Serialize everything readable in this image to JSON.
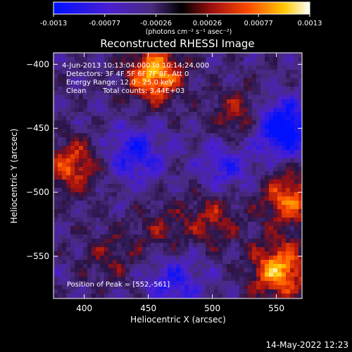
{
  "colorbar": {
    "ticks": [
      "-0.0013",
      "-0.00077",
      "-0.00026",
      "0.00026",
      "0.00077",
      "0.0013"
    ],
    "units_label": "(photons cm⁻² s⁻¹ asec⁻²)",
    "min": -0.0013,
    "max": 0.0013
  },
  "title": "Reconstructed RHESSI Image",
  "info": {
    "line1": "4-Jun-2013 10:13:04.000 to 10:14:24.000",
    "line2": "Detectors: 3F 4F 5F 6F 7F 8F, Att 0",
    "line3": "Energy Range: 12.0 - 25.0 keV",
    "line4_a": "Clean",
    "line4_b": "Total counts: 3.44E+03"
  },
  "peak_label": "Position of Peak = [552,-561]",
  "footer_date": "14-May-2022 12:23",
  "chart_data": {
    "type": "heatmap",
    "title": "Reconstructed RHESSI Image",
    "xlabel": "Heliocentric X (arcsec)",
    "ylabel": "Heliocentric Y (arcsec)",
    "x_ticks": [
      "400",
      "450",
      "500",
      "550"
    ],
    "y_ticks": [
      "-400",
      "-450",
      "-500",
      "-550"
    ],
    "xlim": [
      376,
      570
    ],
    "ylim": [
      -583,
      -391
    ],
    "colormap": "hot-blue",
    "value_range": [
      -0.0013,
      0.0013
    ],
    "peak": [
      552,
      -561
    ],
    "hot_regions": [
      {
        "x": 455,
        "y": -408,
        "value": 0.0013
      },
      {
        "x": 390,
        "y": -480,
        "value": 0.0009
      },
      {
        "x": 552,
        "y": -561,
        "value": 0.0013
      },
      {
        "x": 560,
        "y": -505,
        "value": 0.001
      },
      {
        "x": 520,
        "y": -440,
        "value": 0.0006
      },
      {
        "x": 500,
        "y": -520,
        "value": 0.0006
      },
      {
        "x": 420,
        "y": -550,
        "value": 0.0004
      },
      {
        "x": 460,
        "y": -530,
        "value": 0.0004
      }
    ],
    "cold_regions": [
      {
        "x": 555,
        "y": -450,
        "value": -0.0013
      },
      {
        "x": 440,
        "y": -470,
        "value": -0.0008
      },
      {
        "x": 470,
        "y": -570,
        "value": -0.0007
      },
      {
        "x": 510,
        "y": -480,
        "value": -0.0006
      }
    ]
  }
}
